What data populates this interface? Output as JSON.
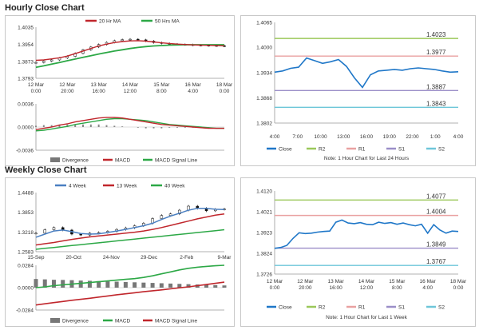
{
  "hourly_title": "Hourly Close Chart",
  "weekly_title": "Weekly Close Chart",
  "colors": {
    "ma_short": "#c0262c",
    "ma_long": "#2ca846",
    "week4": "#4a7fc1",
    "close": "#1f77c8",
    "r2": "#9bc85a",
    "r1": "#e9a1a1",
    "s1": "#9b8ec8",
    "s2": "#6ec6d9",
    "divergence": "#777777"
  },
  "chart_data": [
    {
      "id": "hourly_price",
      "type": "line",
      "legend": [
        "20 Hr MA",
        "50 Hrs MA"
      ],
      "yticks": [
        "1.4035",
        "1.3954",
        "1.3873",
        "1.3793"
      ],
      "ylim": [
        1.3793,
        1.4035
      ],
      "xticks": [
        "12 Mar\n0:00",
        "12 Mar\n20:00",
        "13 Mar\n16:00",
        "14 Mar\n12:00",
        "15 Mar\n8:00",
        "16 Mar\n4:00",
        "18 Mar\n0:00"
      ],
      "series": [
        {
          "name": "Close",
          "values": [
            1.3868,
            1.3874,
            1.388,
            1.3889,
            1.3897,
            1.3911,
            1.3928,
            1.3941,
            1.3953,
            1.3963,
            1.3971,
            1.3976,
            1.3978,
            1.3975,
            1.3969,
            1.3962,
            1.3958,
            1.3955,
            1.3953,
            1.3952,
            1.395,
            1.3949,
            1.3948,
            1.3947,
            1.3946
          ]
        },
        {
          "name": "20 Hr MA",
          "values": [
            1.3878,
            1.388,
            1.3885,
            1.389,
            1.3898,
            1.391,
            1.3922,
            1.3934,
            1.3946,
            1.3955,
            1.3962,
            1.3967,
            1.397,
            1.3971,
            1.3969,
            1.3965,
            1.3961,
            1.3958,
            1.3955,
            1.3953,
            1.3951,
            1.395,
            1.3949,
            1.3948,
            1.3947
          ]
        },
        {
          "name": "50 Hrs MA",
          "values": [
            1.3845,
            1.3852,
            1.386,
            1.3868,
            1.3876,
            1.3884,
            1.3892,
            1.39,
            1.3908,
            1.3915,
            1.3922,
            1.3928,
            1.3934,
            1.3939,
            1.3943,
            1.3946,
            1.3948,
            1.395,
            1.3951,
            1.3952,
            1.3952,
            1.3952,
            1.3952,
            1.3952,
            1.3952
          ]
        }
      ]
    },
    {
      "id": "hourly_macd",
      "type": "line",
      "legend": [
        "Divergence",
        "MACD",
        "MACD Signal Line"
      ],
      "yticks": [
        "0.0036",
        "0.0000",
        "-0.0036"
      ],
      "ylim": [
        -0.0036,
        0.0036
      ],
      "series": [
        {
          "name": "MACD",
          "values": [
            -0.0004,
            -0.0002,
            0.0,
            0.0003,
            0.0005,
            0.0008,
            0.001,
            0.0012,
            0.0014,
            0.0015,
            0.0015,
            0.0014,
            0.0012,
            0.001,
            0.0008,
            0.0006,
            0.0004,
            0.0003,
            0.0002,
            0.0001,
            0.0,
            -0.0001,
            -0.0002,
            -0.0002,
            -0.0002
          ]
        },
        {
          "name": "MACD Signal Line",
          "values": [
            -0.0006,
            -0.0005,
            -0.0003,
            -0.0001,
            0.0001,
            0.0004,
            0.0006,
            0.0008,
            0.001,
            0.0012,
            0.0013,
            0.0013,
            0.0012,
            0.0011,
            0.001,
            0.0008,
            0.0006,
            0.0004,
            0.0003,
            0.0002,
            0.0001,
            0.0,
            -0.0001,
            -0.0002,
            -0.0002
          ]
        },
        {
          "name": "Divergence",
          "values": [
            0.0002,
            0.0003,
            0.0003,
            0.0004,
            0.0004,
            0.0004,
            0.0004,
            0.0004,
            0.0004,
            0.0003,
            0.0002,
            0.0001,
            0.0,
            -0.0001,
            -0.0002,
            -0.0002,
            -0.0002,
            -0.0001,
            -0.0001,
            -0.0001,
            -0.0001,
            -0.0001,
            -0.0001,
            0.0,
            0.0
          ]
        }
      ]
    },
    {
      "id": "hourly_pivot",
      "type": "line",
      "yticks": [
        "1.4065",
        "1.4000",
        "1.3934",
        "1.3868",
        "1.3802"
      ],
      "ylim": [
        1.3802,
        1.4065
      ],
      "xticks": [
        "4:00",
        "7:00",
        "10:00",
        "13:00",
        "16:00",
        "19:00",
        "22:00",
        "1:00",
        "4:00"
      ],
      "levels": [
        {
          "name": "R2",
          "value": 1.4023,
          "label": "1.4023"
        },
        {
          "name": "R1",
          "value": 1.3977,
          "label": "1.3977"
        },
        {
          "name": "S1",
          "value": 1.3887,
          "label": "1.3887"
        },
        {
          "name": "S2",
          "value": 1.3843,
          "label": "1.3843"
        }
      ],
      "close": [
        1.3935,
        1.3938,
        1.3945,
        1.3948,
        1.3972,
        1.3965,
        1.3958,
        1.3962,
        1.3968,
        1.395,
        1.392,
        1.3895,
        1.3928,
        1.3938,
        1.394,
        1.3942,
        1.394,
        1.3944,
        1.3946,
        1.3944,
        1.3942,
        1.3938,
        1.3935,
        1.3936
      ],
      "legend": [
        "Close",
        "R2",
        "R1",
        "S1",
        "S2"
      ],
      "note": "Note: 1 Hour Chart for Last 24 Hours"
    },
    {
      "id": "weekly_price",
      "type": "line",
      "legend": [
        "4 Week",
        "13 Week",
        "40 Week"
      ],
      "yticks": [
        "1.4488",
        "1.3853",
        "1.3218",
        "1.2583"
      ],
      "ylim": [
        1.2583,
        1.4488
      ],
      "xticks": [
        "15-Sep",
        "20-Oct",
        "24-Nov",
        "29-Dec",
        "2-Feb",
        "9-Mar"
      ],
      "series": [
        {
          "name": "Close",
          "values": [
            1.318,
            1.329,
            1.336,
            1.328,
            1.315,
            1.312,
            1.318,
            1.32,
            1.324,
            1.33,
            1.335,
            1.342,
            1.35,
            1.365,
            1.375,
            1.38,
            1.392,
            1.405,
            1.398,
            1.39,
            1.395,
            1.396
          ]
        },
        {
          "name": "4 Week",
          "values": [
            1.305,
            1.315,
            1.325,
            1.328,
            1.323,
            1.317,
            1.315,
            1.316,
            1.32,
            1.325,
            1.33,
            1.336,
            1.342,
            1.35,
            1.362,
            1.373,
            1.382,
            1.392,
            1.398,
            1.398,
            1.395,
            1.394
          ]
        },
        {
          "name": "13 Week",
          "values": [
            1.28,
            1.284,
            1.288,
            1.293,
            1.298,
            1.302,
            1.306,
            1.309,
            1.312,
            1.315,
            1.318,
            1.321,
            1.325,
            1.33,
            1.336,
            1.343,
            1.35,
            1.357,
            1.364,
            1.37,
            1.376,
            1.38
          ]
        },
        {
          "name": "40 Week",
          "values": [
            1.266,
            1.269,
            1.272,
            1.275,
            1.278,
            1.281,
            1.284,
            1.287,
            1.29,
            1.293,
            1.296,
            1.299,
            1.302,
            1.305,
            1.308,
            1.311,
            1.314,
            1.317,
            1.32,
            1.323,
            1.326,
            1.329
          ]
        }
      ]
    },
    {
      "id": "weekly_macd",
      "type": "line",
      "legend": [
        "Divergence",
        "MACD",
        "MACD Signal Line"
      ],
      "yticks": [
        "0.0284",
        "0.0000",
        "-0.0284"
      ],
      "ylim": [
        -0.0284,
        0.0284
      ],
      "series": [
        {
          "name": "MACD",
          "values": [
            0.0,
            0.001,
            0.0025,
            0.0035,
            0.0045,
            0.0055,
            0.0065,
            0.0075,
            0.0085,
            0.0095,
            0.0105,
            0.0115,
            0.013,
            0.015,
            0.0175,
            0.02,
            0.0225,
            0.0245,
            0.026,
            0.027,
            0.0278,
            0.0284
          ]
        },
        {
          "name": "MACD Signal Line",
          "values": [
            -0.022,
            -0.0205,
            -0.019,
            -0.0175,
            -0.016,
            -0.0148,
            -0.0135,
            -0.012,
            -0.0105,
            -0.009,
            -0.0078,
            -0.0065,
            -0.0052,
            -0.004,
            -0.0028,
            -0.0015,
            -0.0002,
            0.001,
            0.0025,
            0.004,
            0.0055,
            0.007
          ]
        },
        {
          "name": "Divergence",
          "values": [
            0.011,
            0.0105,
            0.01,
            0.0098,
            0.0095,
            0.009,
            0.0087,
            0.0083,
            0.008,
            0.0076,
            0.0072,
            0.0068,
            0.0064,
            0.006,
            0.0056,
            0.0052,
            0.0048,
            0.0044,
            0.004,
            0.0036,
            0.0032,
            0.0028
          ]
        }
      ]
    },
    {
      "id": "weekly_pivot",
      "type": "line",
      "yticks": [
        "1.4120",
        "1.4021",
        "1.3923",
        "1.3824",
        "1.3726"
      ],
      "ylim": [
        1.3726,
        1.412
      ],
      "xticks": [
        "12 Mar\n0:00",
        "12 Mar\n20:00",
        "13 Mar\n16:00",
        "14 Mar\n12:00",
        "15 Mar\n8:00",
        "16 Mar\n4:00",
        "18 Mar\n0:00"
      ],
      "levels": [
        {
          "name": "R2",
          "value": 1.4077,
          "label": "1.4077"
        },
        {
          "name": "R1",
          "value": 1.4004,
          "label": "1.4004"
        },
        {
          "name": "S1",
          "value": 1.3849,
          "label": "1.3849"
        },
        {
          "name": "S2",
          "value": 1.3767,
          "label": "1.3767"
        }
      ],
      "close": [
        1.3848,
        1.3852,
        1.3862,
        1.3895,
        1.3922,
        1.3918,
        1.392,
        1.3925,
        1.3928,
        1.393,
        1.3972,
        1.3982,
        1.3968,
        1.3965,
        1.397,
        1.3962,
        1.396,
        1.3972,
        1.3966,
        1.397,
        1.3962,
        1.3968,
        1.396,
        1.3955,
        1.3962,
        1.392,
        1.396,
        1.3935,
        1.392,
        1.393,
        1.3928
      ],
      "legend": [
        "Close",
        "R2",
        "R1",
        "S1",
        "S2"
      ],
      "note": "Note: 1 Hour Chart for Last 1 Week"
    }
  ]
}
